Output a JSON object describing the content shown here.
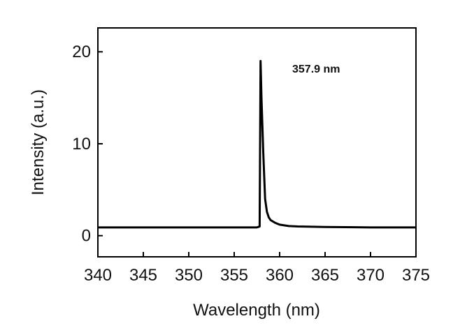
{
  "chart_data": {
    "type": "line",
    "xlabel": "Wavelength (nm)",
    "ylabel": "Intensity (a.u.)",
    "annotation": "357.9 nm",
    "x": [
      340,
      345,
      350,
      355,
      357.5,
      357.8,
      357.9,
      358.0,
      358.2,
      358.4,
      358.6,
      358.8,
      359.0,
      359.5,
      360,
      361,
      362,
      365,
      370,
      375
    ],
    "series": [
      {
        "color": "#000000",
        "values": [
          0.9,
          0.9,
          0.9,
          0.9,
          0.9,
          1.0,
          19,
          15,
          9,
          4,
          2.6,
          2.0,
          1.7,
          1.4,
          1.2,
          1.05,
          1.0,
          0.95,
          0.9,
          0.9
        ]
      }
    ],
    "xlim": [
      340,
      375
    ],
    "xticks": [
      340,
      345,
      350,
      355,
      360,
      365,
      370,
      375
    ],
    "ylim": [
      -2.3,
      22.6
    ],
    "yticks": [
      0,
      10,
      20
    ]
  }
}
